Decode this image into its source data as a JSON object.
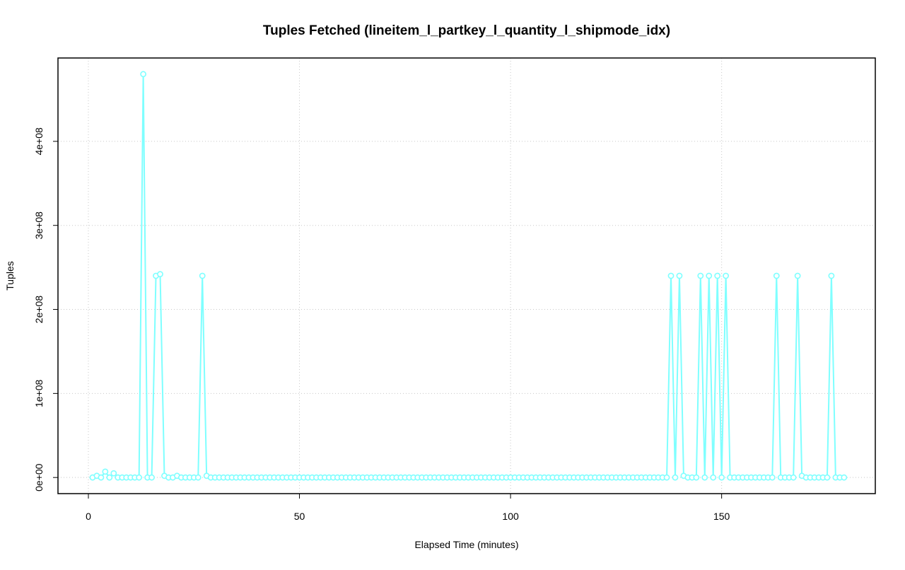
{
  "chart_data": {
    "type": "line",
    "title": "Tuples Fetched (lineitem_l_partkey_l_quantity_l_shipmode_idx)",
    "x_label": "Elapsed Time (minutes)",
    "y_label": "Tuples",
    "color": "#7fffff",
    "grid": true,
    "x": [
      1,
      2,
      3,
      4,
      5,
      6,
      7,
      8,
      9,
      10,
      11,
      12,
      13,
      14,
      15,
      16,
      17,
      18,
      19,
      20,
      21,
      22,
      23,
      24,
      25,
      26,
      27,
      28,
      29,
      30,
      31,
      32,
      33,
      34,
      35,
      36,
      37,
      38,
      39,
      40,
      41,
      42,
      43,
      44,
      45,
      46,
      47,
      48,
      49,
      50,
      51,
      52,
      53,
      54,
      55,
      56,
      57,
      58,
      59,
      60,
      61,
      62,
      63,
      64,
      65,
      66,
      67,
      68,
      69,
      70,
      71,
      72,
      73,
      74,
      75,
      76,
      77,
      78,
      79,
      80,
      81,
      82,
      83,
      84,
      85,
      86,
      87,
      88,
      89,
      90,
      91,
      92,
      93,
      94,
      95,
      96,
      97,
      98,
      99,
      100,
      101,
      102,
      103,
      104,
      105,
      106,
      107,
      108,
      109,
      110,
      111,
      112,
      113,
      114,
      115,
      116,
      117,
      118,
      119,
      120,
      121,
      122,
      123,
      124,
      125,
      126,
      127,
      128,
      129,
      130,
      131,
      132,
      133,
      134,
      135,
      136,
      137,
      138,
      139,
      140,
      141,
      142,
      143,
      144,
      145,
      146,
      147,
      148,
      149,
      150,
      151,
      152,
      153,
      154,
      155,
      156,
      157,
      158,
      159,
      160,
      161,
      162,
      163,
      164,
      165,
      166,
      167,
      168,
      169,
      170,
      171,
      172,
      173,
      174,
      175,
      176,
      177,
      178,
      179
    ],
    "values": [
      0,
      2000000,
      0,
      7000000,
      0,
      5000000,
      0,
      0,
      0,
      0,
      0,
      0,
      480000000,
      0,
      0,
      240000000,
      242000000,
      2000000,
      0,
      0,
      2000000,
      0,
      0,
      0,
      0,
      0,
      240000000,
      2000000,
      0,
      0,
      0,
      0,
      0,
      0,
      0,
      0,
      0,
      0,
      0,
      0,
      0,
      0,
      0,
      0,
      0,
      0,
      0,
      0,
      0,
      0,
      0,
      0,
      0,
      0,
      0,
      0,
      0,
      0,
      0,
      0,
      0,
      0,
      0,
      0,
      0,
      0,
      0,
      0,
      0,
      0,
      0,
      0,
      0,
      0,
      0,
      0,
      0,
      0,
      0,
      0,
      0,
      0,
      0,
      0,
      0,
      0,
      0,
      0,
      0,
      0,
      0,
      0,
      0,
      0,
      0,
      0,
      0,
      0,
      0,
      0,
      0,
      0,
      0,
      0,
      0,
      0,
      0,
      0,
      0,
      0,
      0,
      0,
      0,
      0,
      0,
      0,
      0,
      0,
      0,
      0,
      0,
      0,
      0,
      0,
      0,
      0,
      0,
      0,
      0,
      0,
      0,
      0,
      0,
      0,
      0,
      0,
      0,
      240000000,
      0,
      240000000,
      2000000,
      0,
      0,
      0,
      240000000,
      0,
      240000000,
      0,
      240000000,
      0,
      240000000,
      0,
      0,
      0,
      0,
      0,
      0,
      0,
      0,
      0,
      0,
      0,
      240000000,
      0,
      0,
      0,
      0,
      240000000,
      2000000,
      0,
      0,
      0,
      0,
      0,
      0,
      240000000,
      0,
      0,
      0
    ],
    "xlim": [
      -7.2,
      186.4
    ],
    "ylim": [
      -19200000,
      499200000
    ],
    "xticks": [
      0,
      50,
      100,
      150
    ],
    "yticks": [
      {
        "value": 0,
        "label": "0e+00"
      },
      {
        "value": 100000000,
        "label": "1e+08"
      },
      {
        "value": 200000000,
        "label": "2e+08"
      },
      {
        "value": 300000000,
        "label": "3e+08"
      },
      {
        "value": 400000000,
        "label": "4e+08"
      }
    ]
  }
}
